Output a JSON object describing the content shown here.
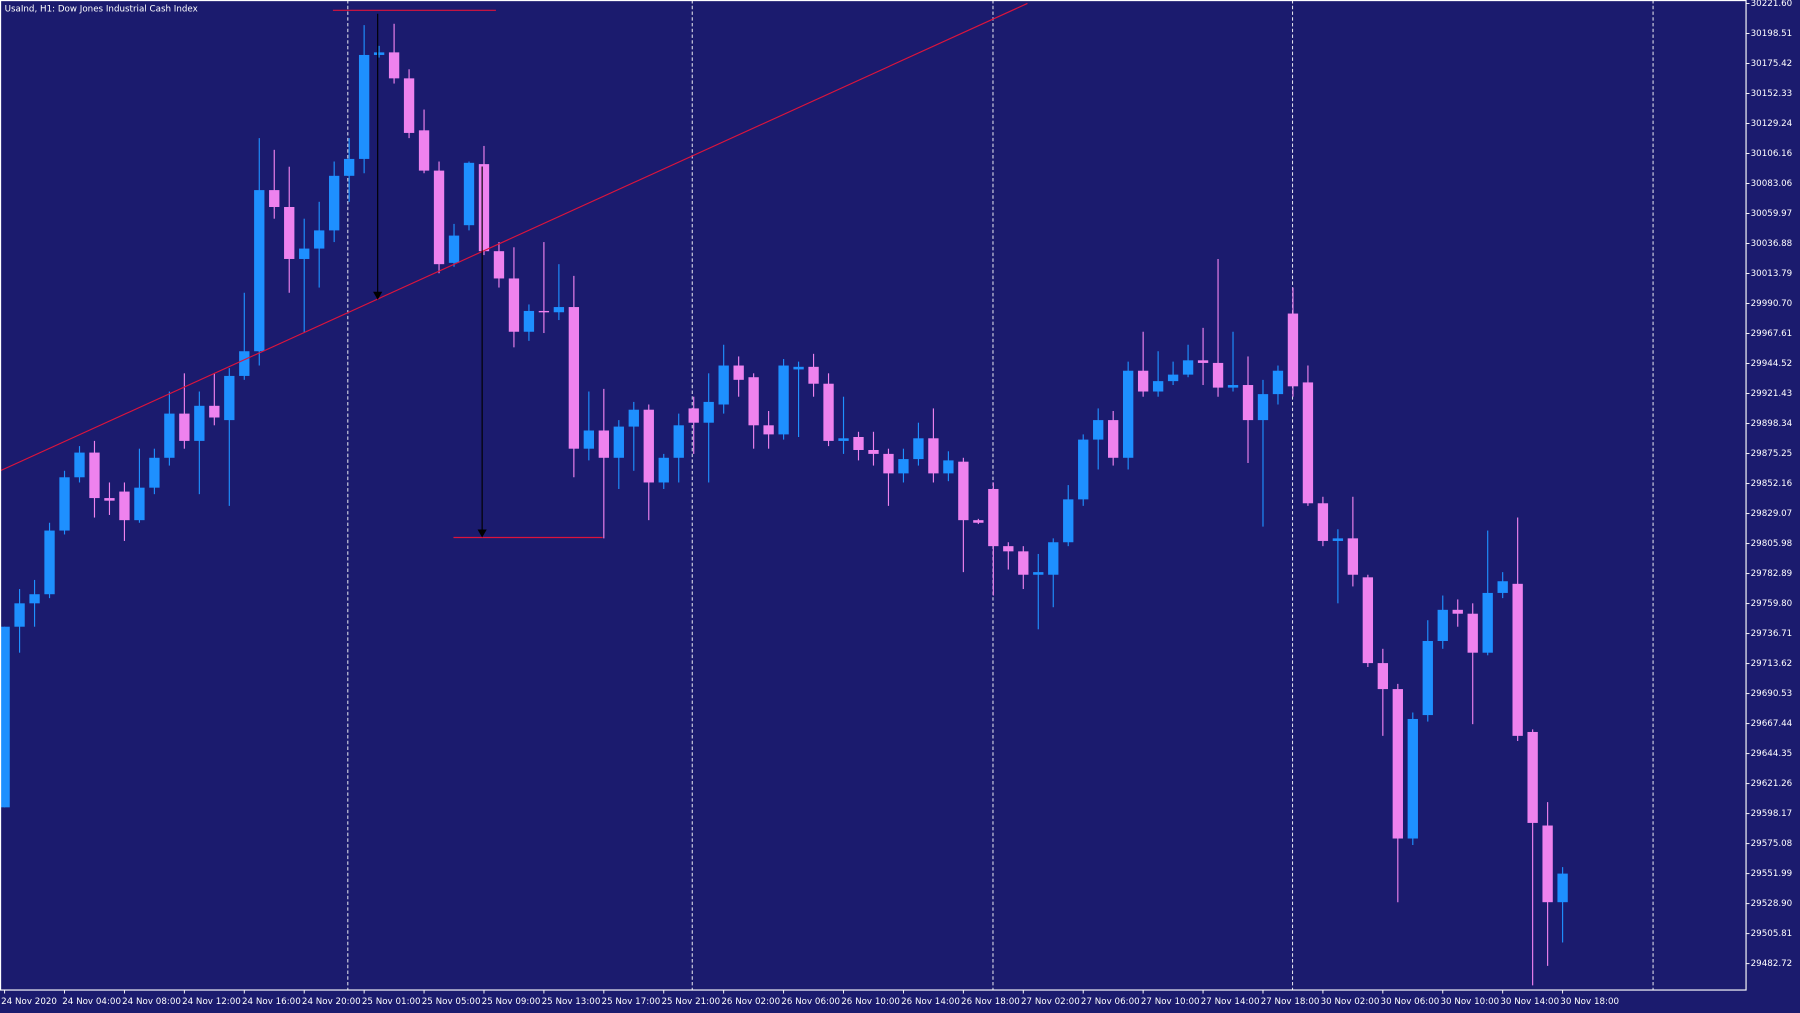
{
  "chart_data": {
    "type": "candlestick",
    "title": "UsaInd, H1:  Dow Jones Industrial Cash Index",
    "background": "#1b1b6e",
    "up_color": "#1e90ff",
    "down_color": "#ee82ee",
    "categories": [
      "24 Nov 2020",
      null,
      null,
      null,
      "24 Nov 04:00",
      null,
      null,
      null,
      "24 Nov 08:00",
      null,
      null,
      null,
      "24 Nov 12:00",
      null,
      null,
      null,
      "24 Nov 16:00",
      null,
      null,
      null,
      "24 Nov 20:00",
      null,
      null,
      null,
      "25 Nov 01:00",
      null,
      null,
      null,
      "25 Nov 05:00",
      null,
      null,
      null,
      "25 Nov 09:00",
      null,
      null,
      null,
      "25 Nov 13:00",
      null,
      null,
      null,
      "25 Nov 17:00",
      null,
      null,
      null,
      "25 Nov 21:00",
      null,
      null,
      null,
      "26 Nov 02:00",
      null,
      null,
      null,
      "26 Nov 06:00",
      null,
      null,
      null,
      "26 Nov 10:00",
      null,
      null,
      null,
      "26 Nov 14:00",
      null,
      null,
      null,
      "26 Nov 18:00",
      null,
      null,
      null,
      "27 Nov 02:00",
      null,
      null,
      null,
      "27 Nov 06:00",
      null,
      null,
      null,
      "27 Nov 10:00",
      null,
      null,
      null,
      "27 Nov 14:00",
      null,
      null,
      null,
      "27 Nov 18:00",
      null,
      null,
      null,
      "30 Nov 02:00",
      null,
      null,
      null,
      "30 Nov 06:00",
      null,
      null,
      null,
      "30 Nov 10:00",
      null,
      null,
      null,
      "30 Nov 14:00",
      null,
      null,
      null,
      "30 Nov 18:00"
    ],
    "open": [
      29603,
      29742,
      29760,
      29767,
      29816,
      29857,
      29876,
      29841,
      29846,
      29824,
      29849,
      29872,
      29906,
      29885,
      29912,
      29901,
      29935,
      29954,
      30078,
      30065,
      30025,
      30033,
      30047,
      30089,
      30102,
      30182,
      30184,
      30164,
      30124,
      30093,
      30022,
      30051,
      30098,
      30031,
      30010,
      29969,
      29985,
      29984,
      29988,
      29879,
      29893,
      29872,
      29896,
      29909,
      29853,
      29872,
      29910,
      29899,
      29913,
      29943,
      29934,
      29897,
      29890,
      29940,
      29942,
      29929,
      29885,
      29888,
      29878,
      29875,
      29860,
      29871,
      29887,
      29860,
      29869,
      29824,
      29848,
      29804,
      29800,
      29782,
      29782,
      29807,
      29840,
      29886,
      29901,
      29872,
      29939,
      29923,
      29931,
      29936,
      29947,
      29945,
      29926,
      29928,
      29901,
      29921,
      29983,
      29930,
      29837,
      29808,
      29810,
      29780,
      29714,
      29694,
      29579,
      29674,
      29731,
      29755,
      29752,
      29722,
      29768,
      29775,
      29661,
      29589,
      29530
    ],
    "high": [
      29742,
      29771,
      29778,
      29822,
      29862,
      29881,
      29885,
      29853,
      29853,
      29879,
      29879,
      29923,
      29937,
      29923,
      29937,
      29941,
      29999,
      30118,
      30109,
      30096,
      30056,
      30069,
      30100,
      30118,
      30205,
      30189,
      30206,
      30171,
      30140,
      30100,
      30052,
      30100,
      30112,
      30038,
      30034,
      29990,
      30038,
      30021,
      30012,
      29923,
      29925,
      29901,
      29915,
      29913,
      29875,
      29906,
      29919,
      29937,
      29959,
      29950,
      29937,
      29908,
      29948,
      29946,
      29952,
      29937,
      29919,
      29892,
      29892,
      29879,
      29879,
      29899,
      29910,
      29877,
      29872,
      29825,
      29853,
      29807,
      29804,
      29798,
      29810,
      29851,
      29890,
      29910,
      29908,
      29946,
      29969,
      29954,
      29946,
      29959,
      29972,
      30025,
      29969,
      29950,
      29932,
      29943,
      30003,
      29943,
      29842,
      29817,
      29842,
      29782,
      29725,
      29698,
      29676,
      29747,
      29766,
      29763,
      29760,
      29816,
      29784,
      29826,
      29663,
      29607,
      29557
    ],
    "low": [
      29603,
      29722,
      29742,
      29764,
      29813,
      29853,
      29826,
      29828,
      29808,
      29822,
      29844,
      29866,
      29879,
      29844,
      29897,
      29835,
      29932,
      29943,
      30056,
      29999,
      29968,
      30003,
      30038,
      30069,
      30091,
      30180,
      30160,
      30118,
      30091,
      30014,
      30019,
      30047,
      30028,
      30003,
      29957,
      29962,
      29968,
      29978,
      29857,
      29870,
      29810,
      29848,
      29862,
      29824,
      29848,
      29853,
      29875,
      29853,
      29906,
      29919,
      29879,
      29879,
      29886,
      29888,
      29919,
      29881,
      29875,
      29870,
      29866,
      29835,
      29853,
      29866,
      29853,
      29854,
      29784,
      29821,
      29766,
      29786,
      29771,
      29740,
      29757,
      29804,
      29835,
      29863,
      29866,
      29863,
      29919,
      29919,
      29928,
      29934,
      29928,
      29919,
      29923,
      29868,
      29819,
      29913,
      29919,
      29835,
      29804,
      29760,
      29773,
      29711,
      29658,
      29530,
      29574,
      29669,
      29725,
      29742,
      29667,
      29720,
      29764,
      29654,
      29466,
      29481,
      29499
    ],
    "close": [
      29742,
      29760,
      29767,
      29816,
      29857,
      29876,
      29841,
      29839,
      29824,
      29849,
      29872,
      29906,
      29885,
      29912,
      29903,
      29935,
      29954,
      30078,
      30065,
      30025,
      30033,
      30047,
      30089,
      30102,
      30182,
      30184,
      30164,
      30122,
      30093,
      30021,
      30043,
      30099,
      30031,
      30010,
      29969,
      29985,
      29984,
      29988,
      29879,
      29893,
      29872,
      29896,
      29909,
      29853,
      29872,
      29897,
      29899,
      29915,
      29943,
      29932,
      29897,
      29890,
      29943,
      29942,
      29929,
      29885,
      29887,
      29878,
      29875,
      29860,
      29871,
      29887,
      29860,
      29870,
      29824,
      29822,
      29804,
      29800,
      29782,
      29784,
      29807,
      29840,
      29886,
      29901,
      29872,
      29939,
      29923,
      29931,
      29936,
      29947,
      29945,
      29926,
      29928,
      29901,
      29921,
      29939,
      29927,
      29837,
      29808,
      29810,
      29782,
      29714,
      29694,
      29579,
      29671,
      29731,
      29755,
      29752,
      29722,
      29768,
      29777,
      29658,
      29591,
      29530,
      29552
    ],
    "ylim": [
      29462.4,
      30224.3
    ],
    "yticks": [
      {
        "value": 30221.6,
        "label": "30221.60"
      },
      {
        "value": 30198.51,
        "label": "30198.51"
      },
      {
        "value": 30175.42,
        "label": "30175.42"
      },
      {
        "value": 30152.33,
        "label": "30152.33"
      },
      {
        "value": 30129.24,
        "label": "30129.24"
      },
      {
        "value": 30106.16,
        "label": "30106.16"
      },
      {
        "value": 30083.06,
        "label": "30083.06"
      },
      {
        "value": 30059.97,
        "label": "30059.97"
      },
      {
        "value": 30036.88,
        "label": "30036.88"
      },
      {
        "value": 30013.79,
        "label": "30013.79"
      },
      {
        "value": 29990.7,
        "label": "29990.70"
      },
      {
        "value": 29967.61,
        "label": "29967.61"
      },
      {
        "value": 29944.52,
        "label": "29944.52"
      },
      {
        "value": 29921.43,
        "label": "29921.43"
      },
      {
        "value": 29898.34,
        "label": "29898.34"
      },
      {
        "value": 29875.25,
        "label": "29875.25"
      },
      {
        "value": 29852.16,
        "label": "29852.16"
      },
      {
        "value": 29829.07,
        "label": "29829.07"
      },
      {
        "value": 29805.98,
        "label": "29805.98"
      },
      {
        "value": 29782.89,
        "label": "29782.89"
      },
      {
        "value": 29759.8,
        "label": "29759.80"
      },
      {
        "value": 29736.71,
        "label": "29736.71"
      },
      {
        "value": 29713.62,
        "label": "29713.62"
      },
      {
        "value": 29690.53,
        "label": "29690.53"
      },
      {
        "value": 29667.44,
        "label": "29667.44"
      },
      {
        "value": 29644.35,
        "label": "29644.35"
      },
      {
        "value": 29621.26,
        "label": "29621.26"
      },
      {
        "value": 29598.17,
        "label": "29598.17"
      },
      {
        "value": 29575.08,
        "label": "29575.08"
      },
      {
        "value": 29551.99,
        "label": "29551.99"
      },
      {
        "value": 29528.9,
        "label": "29528.90"
      },
      {
        "value": 29505.81,
        "label": "29505.81"
      },
      {
        "value": 29482.72,
        "label": "29482.72"
      }
    ]
  }
}
